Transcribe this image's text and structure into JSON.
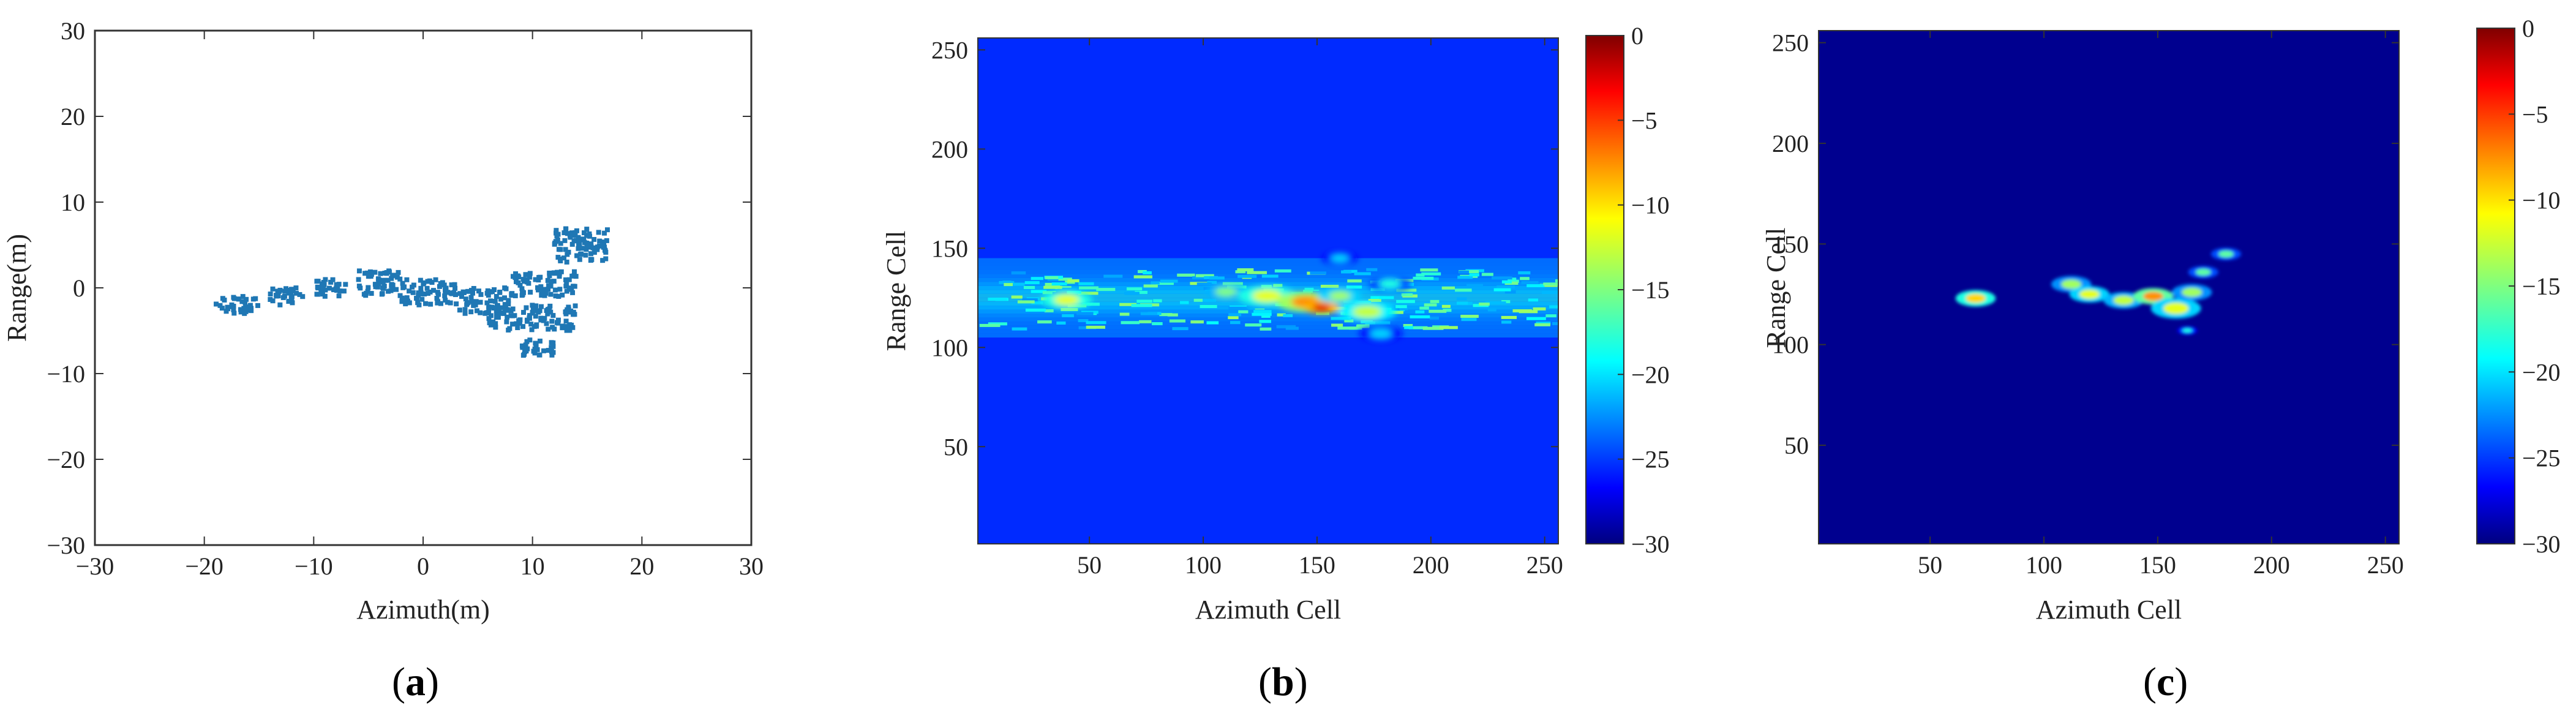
{
  "colors": {
    "scatter": "#1f77b4",
    "jet_low": "#00007f",
    "background_b": "#0a2ac8",
    "background_c": "#00008f"
  },
  "chart_data": [
    {
      "id": "a",
      "type": "scatter",
      "panel_label": "a",
      "xlabel": "Azimuth(m)",
      "ylabel": "Range(m)",
      "xlim": [
        -30,
        30
      ],
      "ylim": [
        -30,
        30
      ],
      "xticks": [
        -30,
        -20,
        -10,
        0,
        10,
        20,
        30
      ],
      "yticks": [
        -30,
        -20,
        -10,
        0,
        10,
        20,
        30
      ],
      "grid": false,
      "clusters": [
        {
          "x": [
            -19,
            -15
          ],
          "y": [
            -3,
            -1
          ]
        },
        {
          "x": [
            -14,
            -11
          ],
          "y": [
            -2,
            0
          ]
        },
        {
          "x": [
            -10,
            -7
          ],
          "y": [
            -1,
            1
          ]
        },
        {
          "x": [
            -6,
            -2
          ],
          "y": [
            -1,
            2
          ]
        },
        {
          "x": [
            -2,
            3
          ],
          "y": [
            -2,
            1
          ]
        },
        {
          "x": [
            3,
            8
          ],
          "y": [
            -3,
            0
          ]
        },
        {
          "x": [
            6,
            14
          ],
          "y": [
            -5,
            -2
          ]
        },
        {
          "x": [
            8,
            14
          ],
          "y": [
            -1,
            2
          ]
        },
        {
          "x": [
            12,
            17
          ],
          "y": [
            3,
            7
          ]
        },
        {
          "x": [
            9,
            12
          ],
          "y": [
            -8,
            -6
          ]
        }
      ]
    },
    {
      "id": "b",
      "type": "heatmap",
      "panel_label": "b",
      "xlabel": "Azimuth Cell",
      "ylabel": "Range Cell",
      "xlim": [
        1,
        256
      ],
      "ylim": [
        1,
        256
      ],
      "xticks": [
        50,
        100,
        150,
        200,
        250
      ],
      "yticks": [
        50,
        100,
        150,
        200,
        250
      ],
      "colorbar": {
        "min": -30,
        "max": 0,
        "ticks": [
          0,
          -5,
          -10,
          -15,
          -20,
          -25,
          -30
        ],
        "colormap": "jet"
      },
      "background_db": -25,
      "band_range_cells": [
        105,
        145
      ],
      "hotspots": [
        {
          "x": 40,
          "y": 124,
          "db": -12,
          "r": 7
        },
        {
          "x": 110,
          "y": 128,
          "db": -15,
          "r": 6
        },
        {
          "x": 128,
          "y": 126,
          "db": -12,
          "r": 8
        },
        {
          "x": 145,
          "y": 123,
          "db": -8,
          "r": 8
        },
        {
          "x": 152,
          "y": 120,
          "db": -3,
          "r": 5
        },
        {
          "x": 160,
          "y": 126,
          "db": -14,
          "r": 6
        },
        {
          "x": 172,
          "y": 118,
          "db": -13,
          "r": 8
        },
        {
          "x": 182,
          "y": 132,
          "db": -18,
          "r": 6
        },
        {
          "x": 178,
          "y": 107,
          "db": -20,
          "r": 6
        },
        {
          "x": 160,
          "y": 145,
          "db": -20,
          "r": 5
        }
      ]
    },
    {
      "id": "c",
      "type": "heatmap",
      "panel_label": "c",
      "xlabel": "Azimuth Cell",
      "ylabel": "Range Cell",
      "xlim": [
        1,
        256
      ],
      "ylim": [
        1,
        256
      ],
      "xticks": [
        50,
        100,
        150,
        200,
        250
      ],
      "yticks": [
        50,
        100,
        150,
        200,
        250
      ],
      "colorbar": {
        "min": -30,
        "max": 0,
        "ticks": [
          0,
          -5,
          -10,
          -15,
          -20,
          -25,
          -30
        ],
        "colormap": "jet"
      },
      "background_db": -30,
      "hotspots": [
        {
          "x": 70,
          "y": 123,
          "db": -10,
          "r": 4
        },
        {
          "x": 112,
          "y": 130,
          "db": -14,
          "r": 4
        },
        {
          "x": 120,
          "y": 125,
          "db": -12,
          "r": 4
        },
        {
          "x": 135,
          "y": 122,
          "db": -13,
          "r": 4
        },
        {
          "x": 148,
          "y": 124,
          "db": -8,
          "r": 4
        },
        {
          "x": 158,
          "y": 118,
          "db": -12,
          "r": 5
        },
        {
          "x": 165,
          "y": 126,
          "db": -14,
          "r": 4
        },
        {
          "x": 170,
          "y": 136,
          "db": -16,
          "r": 3
        },
        {
          "x": 180,
          "y": 145,
          "db": -16,
          "r": 3
        },
        {
          "x": 163,
          "y": 107,
          "db": -18,
          "r": 2
        }
      ]
    }
  ]
}
